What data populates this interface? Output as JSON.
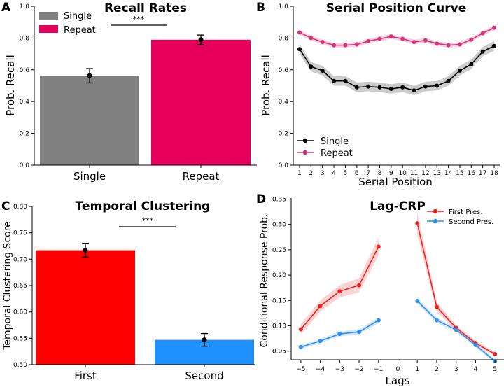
{
  "panel_letters": [
    "A",
    "B",
    "C",
    "D"
  ],
  "chart_data": [
    {
      "id": "A",
      "type": "bar",
      "title": "Recall Rates",
      "ylabel": "Prob. Recall",
      "categories": [
        "Single",
        "Repeat"
      ],
      "values": [
        0.563,
        0.789
      ],
      "errors": [
        0.045,
        0.03
      ],
      "colors": [
        "#808080",
        "#e6005c"
      ],
      "ylim": [
        0.0,
        1.0
      ],
      "yticks": [
        "0.0",
        "0.2",
        "0.4",
        "0.6",
        "0.8",
        "1.0"
      ],
      "ytick_values": [
        0.0,
        0.2,
        0.4,
        0.6,
        0.8,
        1.0
      ],
      "legend": [
        "Single",
        "Repeat"
      ],
      "significance": "***"
    },
    {
      "id": "B",
      "type": "line",
      "title": "Serial Position Curve",
      "xlabel": "Serial Position",
      "ylabel": "Prob. Recall",
      "x": [
        1,
        2,
        3,
        4,
        5,
        6,
        7,
        8,
        9,
        10,
        11,
        12,
        13,
        14,
        15,
        16,
        17,
        18
      ],
      "xticks": [
        "1",
        "2",
        "3",
        "4",
        "5",
        "6",
        "7",
        "8",
        "9",
        "10",
        "11",
        "12",
        "13",
        "14",
        "15",
        "16",
        "17",
        "18"
      ],
      "ylim": [
        0.0,
        1.0
      ],
      "yticks": [
        "0.0",
        "0.2",
        "0.4",
        "0.6",
        "0.8",
        "1.0"
      ],
      "ytick_values": [
        0.0,
        0.2,
        0.4,
        0.6,
        0.8,
        1.0
      ],
      "series": [
        {
          "name": "Single",
          "color": "#000000",
          "band": 0.03,
          "values": [
            0.73,
            0.62,
            0.595,
            0.53,
            0.53,
            0.49,
            0.495,
            0.49,
            0.48,
            0.49,
            0.47,
            0.495,
            0.5,
            0.53,
            0.595,
            0.635,
            0.715,
            0.75
          ]
        },
        {
          "name": "Repeat",
          "color": "#d6337a",
          "band": 0.015,
          "values": [
            0.835,
            0.8,
            0.775,
            0.755,
            0.755,
            0.76,
            0.78,
            0.795,
            0.81,
            0.795,
            0.775,
            0.785,
            0.765,
            0.755,
            0.76,
            0.79,
            0.83,
            0.865
          ]
        }
      ]
    },
    {
      "id": "C",
      "type": "bar",
      "title": "Temporal Clustering",
      "ylabel": "Temporal Clustering Score",
      "categories": [
        "First",
        "Second"
      ],
      "values": [
        0.717,
        0.547
      ],
      "errors": [
        0.013,
        0.012
      ],
      "colors": [
        "#ff0000",
        "#1e90ff"
      ],
      "ylim": [
        0.5,
        0.8
      ],
      "yticks": [
        "0.50",
        "0.55",
        "0.60",
        "0.65",
        "0.70",
        "0.75",
        "0.80"
      ],
      "ytick_values": [
        0.5,
        0.55,
        0.6,
        0.65,
        0.7,
        0.75,
        0.8
      ],
      "significance": "***"
    },
    {
      "id": "D",
      "type": "line",
      "title": "Lag-CRP",
      "xlabel": "Lags",
      "ylabel": "Conditional Response Prob.",
      "xlim": [
        -5.5,
        5.5
      ],
      "xticks": [
        "−5",
        "−4",
        "−3",
        "−2",
        "−1",
        "0",
        "1",
        "2",
        "3",
        "4",
        "5"
      ],
      "xtick_values": [
        -5,
        -4,
        -3,
        -2,
        -1,
        0,
        1,
        2,
        3,
        4,
        5
      ],
      "ylim": [
        0.033,
        0.352
      ],
      "yticks": [
        "0.05",
        "0.10",
        "0.15",
        "0.20",
        "0.25",
        "0.30",
        "0.35"
      ],
      "ytick_values": [
        0.05,
        0.1,
        0.15,
        0.2,
        0.25,
        0.3,
        0.35
      ],
      "series": [
        {
          "name": "First Pres.",
          "color": "#ee2222",
          "segments": [
            {
              "x": [
                -5,
                -4,
                -3,
                -2,
                -1
              ],
              "values": [
                0.093,
                0.139,
                0.168,
                0.18,
                0.256
              ],
              "band": [
                0.01,
                0.011,
                0.012,
                0.014,
                0.018
              ]
            },
            {
              "x": [
                1,
                2,
                3,
                4,
                5
              ],
              "values": [
                0.302,
                0.137,
                0.096,
                0.066,
                0.044
              ],
              "band": [
                0.022,
                0.01,
                0.005,
                0.004,
                0.004
              ]
            }
          ]
        },
        {
          "name": "Second Pres.",
          "color": "#2e8fee",
          "segments": [
            {
              "x": [
                -5,
                -4,
                -3,
                -2,
                -1
              ],
              "values": [
                0.058,
                0.07,
                0.084,
                0.088,
                0.111
              ],
              "band": [
                0.004,
                0.004,
                0.005,
                0.005,
                0.006
              ]
            },
            {
              "x": [
                1,
                2,
                3,
                4,
                5
              ],
              "values": [
                0.149,
                0.111,
                0.092,
                0.062,
                0.03
              ],
              "band": [
                0.006,
                0.005,
                0.004,
                0.004,
                0.004
              ]
            }
          ]
        }
      ]
    }
  ]
}
